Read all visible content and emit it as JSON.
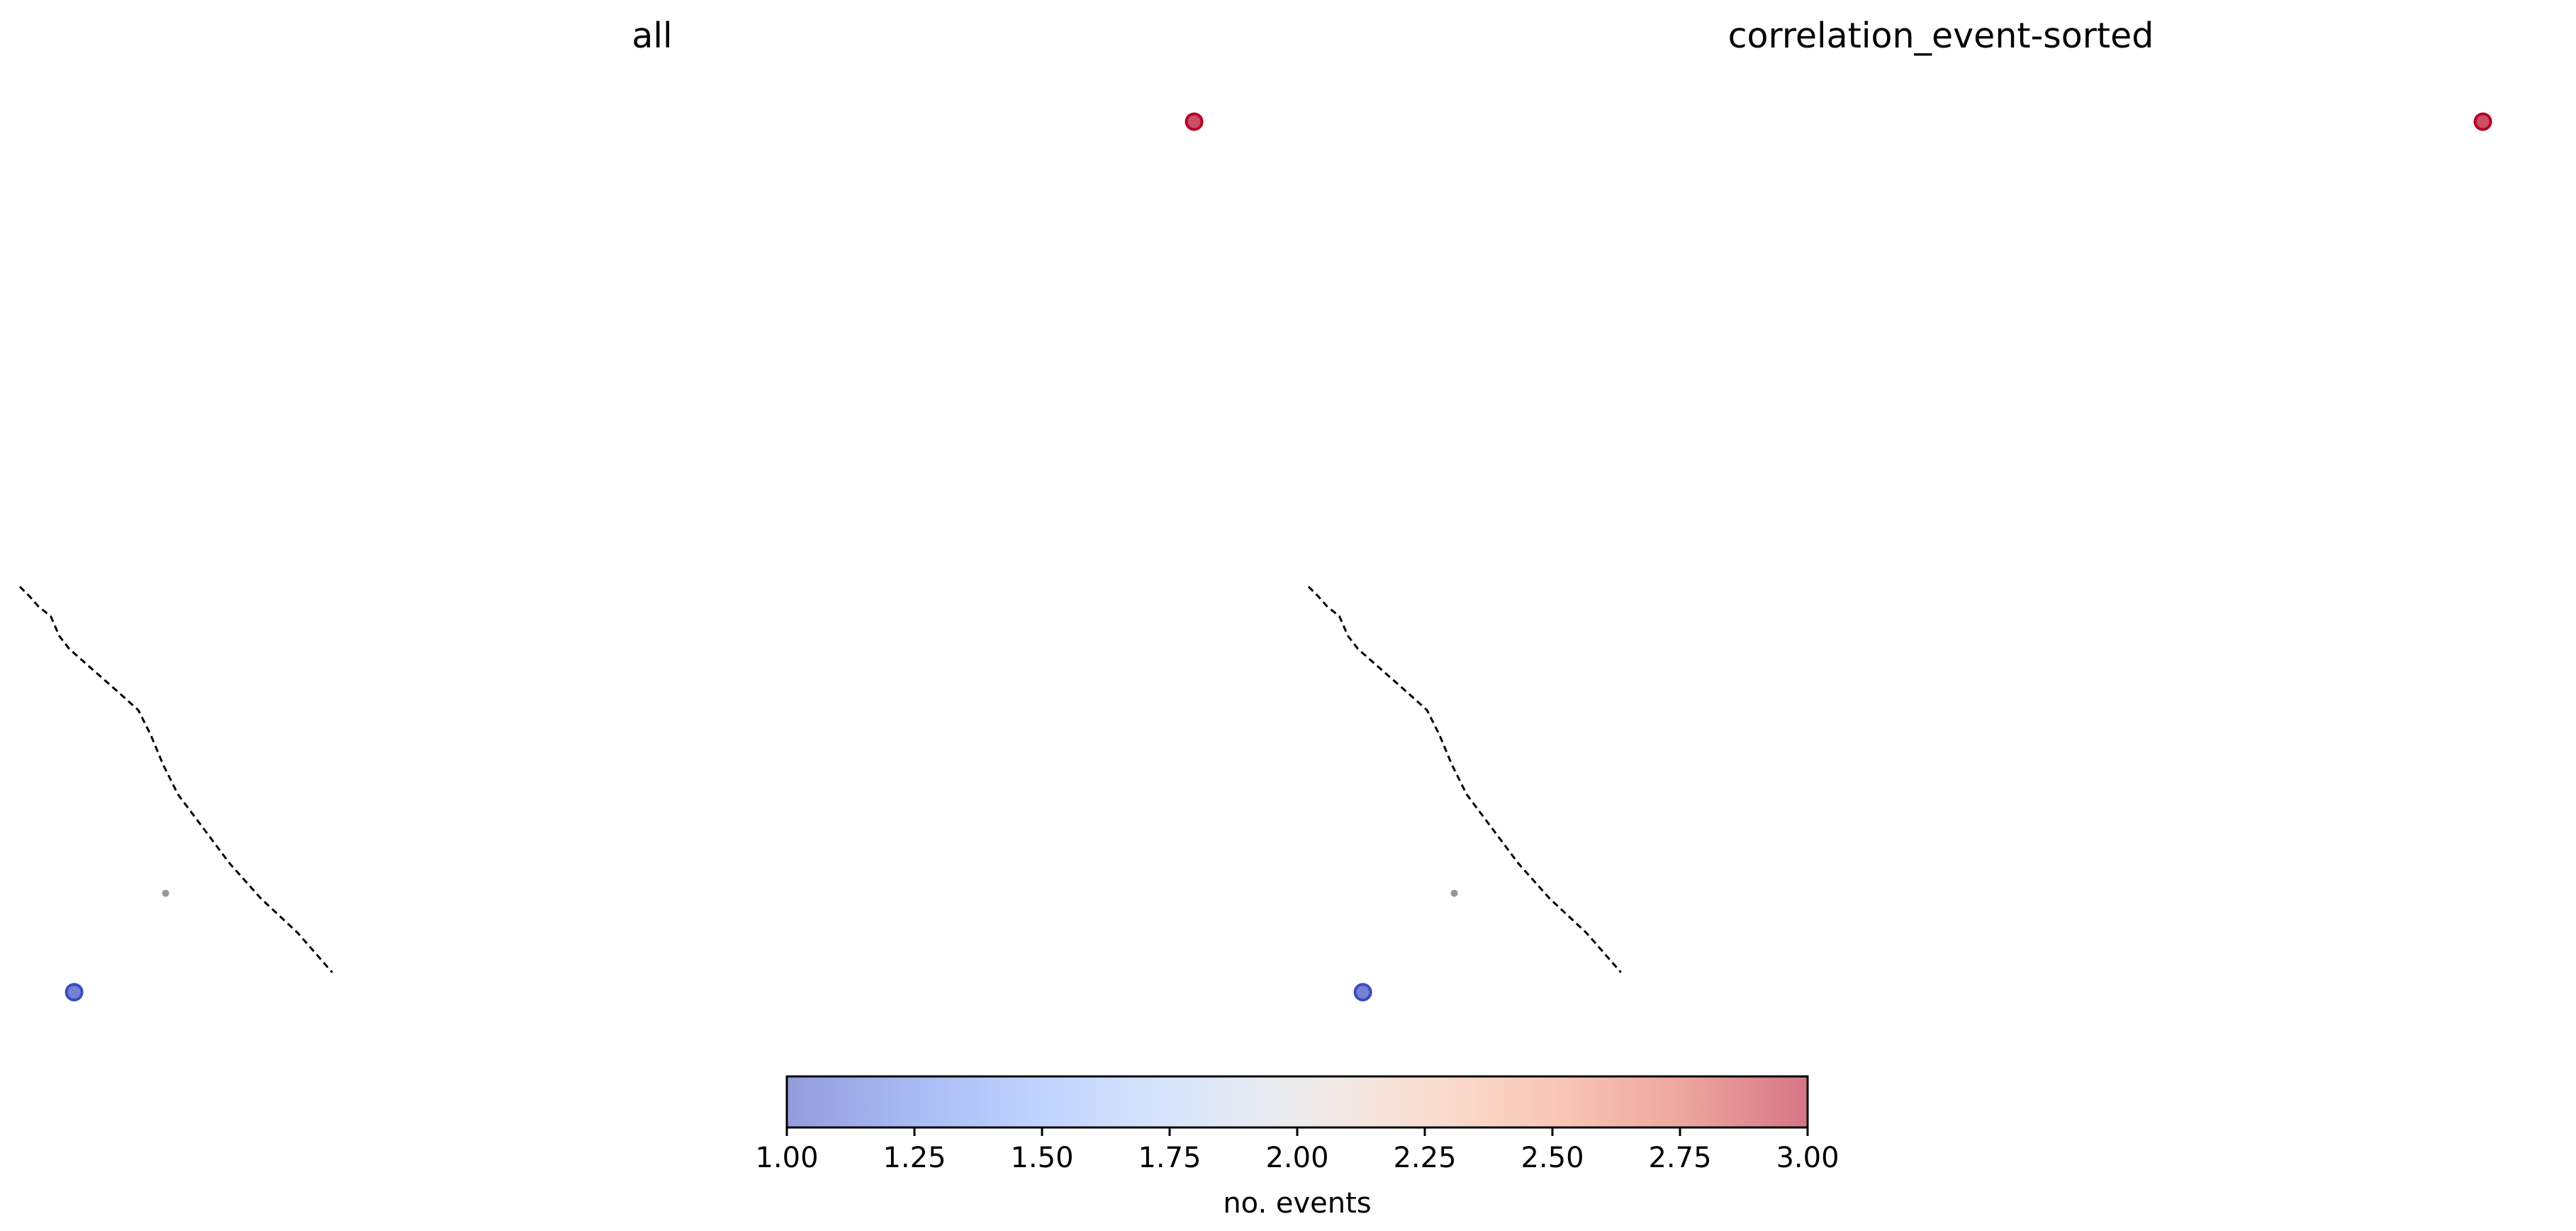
{
  "chart_data": [
    {
      "type": "scatter",
      "title": "all",
      "xlabel": "",
      "ylabel": "",
      "axes_visible": false,
      "grid": false,
      "xlim": [
        0,
        1
      ],
      "ylim": [
        0,
        1
      ],
      "points": [
        {
          "x": 0.951,
          "y": 0.92,
          "events": 3.0
        },
        {
          "x": 0.044,
          "y": 0.04,
          "events": 1.0
        },
        {
          "x": 0.118,
          "y": 0.14,
          "events": null
        }
      ],
      "curve": [
        {
          "x": 0.0,
          "y": 0.45
        },
        {
          "x": 0.008,
          "y": 0.44
        },
        {
          "x": 0.015,
          "y": 0.43
        },
        {
          "x": 0.025,
          "y": 0.42
        },
        {
          "x": 0.032,
          "y": 0.4
        },
        {
          "x": 0.04,
          "y": 0.387
        },
        {
          "x": 0.06,
          "y": 0.365
        },
        {
          "x": 0.08,
          "y": 0.343
        },
        {
          "x": 0.096,
          "y": 0.325
        },
        {
          "x": 0.106,
          "y": 0.3
        },
        {
          "x": 0.116,
          "y": 0.27
        },
        {
          "x": 0.128,
          "y": 0.24
        },
        {
          "x": 0.146,
          "y": 0.21
        },
        {
          "x": 0.17,
          "y": 0.17
        },
        {
          "x": 0.195,
          "y": 0.135
        },
        {
          "x": 0.225,
          "y": 0.1
        },
        {
          "x": 0.253,
          "y": 0.06
        }
      ]
    },
    {
      "type": "scatter",
      "title": "correlation_event-sorted",
      "xlabel": "",
      "ylabel": "",
      "axes_visible": false,
      "grid": false,
      "xlim": [
        0,
        1
      ],
      "ylim": [
        0,
        1
      ],
      "points": [
        {
          "x": 0.951,
          "y": 0.92,
          "events": 3.0
        },
        {
          "x": 0.044,
          "y": 0.04,
          "events": 1.0
        },
        {
          "x": 0.118,
          "y": 0.14,
          "events": null
        }
      ],
      "curve": [
        {
          "x": 0.0,
          "y": 0.45
        },
        {
          "x": 0.008,
          "y": 0.44
        },
        {
          "x": 0.015,
          "y": 0.43
        },
        {
          "x": 0.025,
          "y": 0.42
        },
        {
          "x": 0.032,
          "y": 0.4
        },
        {
          "x": 0.04,
          "y": 0.387
        },
        {
          "x": 0.06,
          "y": 0.365
        },
        {
          "x": 0.08,
          "y": 0.343
        },
        {
          "x": 0.096,
          "y": 0.325
        },
        {
          "x": 0.106,
          "y": 0.3
        },
        {
          "x": 0.116,
          "y": 0.27
        },
        {
          "x": 0.128,
          "y": 0.24
        },
        {
          "x": 0.146,
          "y": 0.21
        },
        {
          "x": 0.17,
          "y": 0.17
        },
        {
          "x": 0.195,
          "y": 0.135
        },
        {
          "x": 0.225,
          "y": 0.1
        },
        {
          "x": 0.253,
          "y": 0.06
        }
      ]
    }
  ],
  "colorbar": {
    "label": "no. events",
    "min": 1.0,
    "max": 3.0,
    "colormap": "coolwarm",
    "ticks": [
      "1.00",
      "1.25",
      "1.50",
      "1.75",
      "2.00",
      "2.25",
      "2.50",
      "2.75",
      "3.00"
    ],
    "tick_values": [
      1.0,
      1.25,
      1.5,
      1.75,
      2.0,
      2.25,
      2.5,
      2.75,
      3.0
    ],
    "colors": [
      "#3b4cc0",
      "#6282ea",
      "#8db0fe",
      "#b8d0f9",
      "#dddddd",
      "#f5c4ac",
      "#f49a7b",
      "#de604d",
      "#b40426"
    ]
  },
  "colors": {
    "curve": "#000000",
    "small_point": "#8c8c8c",
    "point_low": "#6a81d2",
    "point_high": "#c25266"
  }
}
